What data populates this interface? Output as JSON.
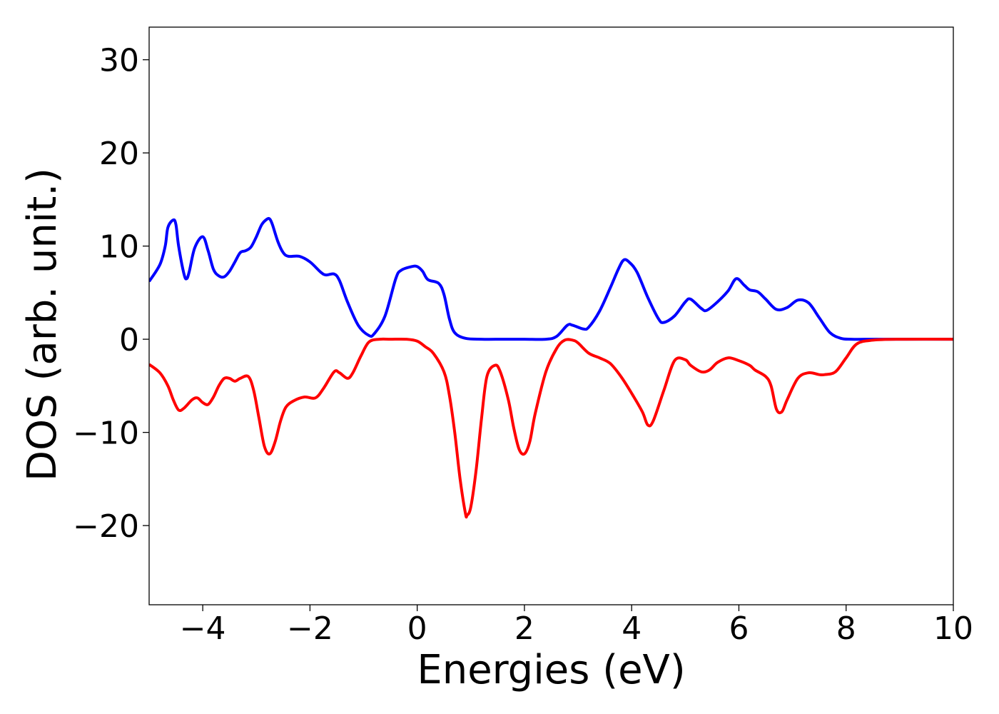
{
  "chart_data": {
    "type": "line",
    "xlabel": "Energies (eV)",
    "ylabel": "DOS (arb. unit.)",
    "xlim": [
      -5,
      10
    ],
    "ylim": [
      -28.5,
      33.5
    ],
    "xticks": [
      -4,
      -2,
      0,
      2,
      4,
      6,
      8,
      10
    ],
    "xtick_labels": [
      "−4",
      "−2",
      "0",
      "2",
      "4",
      "6",
      "8",
      "10"
    ],
    "yticks": [
      -20,
      -10,
      0,
      10,
      20,
      30
    ],
    "ytick_labels": [
      "−20",
      "−10",
      "0",
      "10",
      "20",
      "30"
    ],
    "grid": false,
    "series": [
      {
        "color": "#0000ff",
        "x": [
          -5.0,
          -4.8,
          -4.7,
          -4.65,
          -4.55,
          -4.5,
          -4.45,
          -4.35,
          -4.3,
          -4.25,
          -4.15,
          -4.0,
          -3.9,
          -3.8,
          -3.7,
          -3.6,
          -3.5,
          -3.4,
          -3.3,
          -3.2,
          -3.1,
          -3.0,
          -2.9,
          -2.8,
          -2.75,
          -2.7,
          -2.6,
          -2.5,
          -2.4,
          -2.2,
          -2.0,
          -1.8,
          -1.7,
          -1.55,
          -1.45,
          -1.3,
          -1.1,
          -0.9,
          -0.8,
          -0.6,
          -0.4,
          -0.3,
          -0.1,
          0.0,
          0.1,
          0.2,
          0.4,
          0.5,
          0.6,
          0.7,
          0.9,
          1.2,
          1.6,
          2.0,
          2.4,
          2.6,
          2.8,
          2.9,
          3.1,
          3.2,
          3.4,
          3.6,
          3.75,
          3.85,
          3.95,
          4.1,
          4.3,
          4.5,
          4.6,
          4.8,
          5.0,
          5.1,
          5.3,
          5.4,
          5.6,
          5.8,
          5.95,
          6.1,
          6.2,
          6.35,
          6.5,
          6.7,
          6.9,
          7.1,
          7.3,
          7.5,
          7.7,
          7.9,
          8.1,
          8.5,
          9.0,
          10.0
        ],
        "y": [
          6.2,
          8.0,
          10.0,
          12.0,
          12.8,
          12.3,
          10.0,
          7.0,
          6.5,
          7.3,
          9.8,
          11.0,
          9.5,
          7.5,
          6.8,
          6.7,
          7.3,
          8.3,
          9.3,
          9.5,
          9.9,
          11.0,
          12.3,
          12.9,
          12.9,
          12.3,
          10.5,
          9.3,
          8.9,
          8.9,
          8.3,
          7.2,
          6.9,
          7.0,
          6.3,
          4.0,
          1.5,
          0.4,
          0.6,
          2.5,
          6.5,
          7.4,
          7.8,
          7.8,
          7.3,
          6.4,
          6.0,
          4.8,
          2.2,
          0.7,
          0.1,
          0.0,
          0.0,
          0.0,
          0.0,
          0.3,
          1.5,
          1.5,
          1.1,
          1.3,
          3.0,
          5.5,
          7.5,
          8.5,
          8.3,
          7.2,
          4.5,
          2.2,
          1.8,
          2.5,
          4.0,
          4.3,
          3.3,
          3.1,
          4.0,
          5.2,
          6.5,
          5.8,
          5.3,
          5.1,
          4.3,
          3.2,
          3.4,
          4.2,
          3.9,
          2.3,
          0.7,
          0.1,
          0.0,
          0.0,
          0.0,
          0.0
        ]
      },
      {
        "color": "#ff0000",
        "x": [
          -5.0,
          -4.8,
          -4.65,
          -4.55,
          -4.45,
          -4.35,
          -4.2,
          -4.1,
          -4.0,
          -3.9,
          -3.8,
          -3.7,
          -3.6,
          -3.5,
          -3.4,
          -3.3,
          -3.15,
          -3.05,
          -2.95,
          -2.85,
          -2.75,
          -2.65,
          -2.55,
          -2.45,
          -2.3,
          -2.1,
          -1.9,
          -1.75,
          -1.55,
          -1.45,
          -1.3,
          -1.2,
          -1.05,
          -0.9,
          -0.7,
          -0.5,
          -0.2,
          0.0,
          0.15,
          0.3,
          0.5,
          0.6,
          0.7,
          0.8,
          0.9,
          0.93,
          1.0,
          1.1,
          1.2,
          1.3,
          1.45,
          1.55,
          1.7,
          1.8,
          1.9,
          2.0,
          2.1,
          2.2,
          2.4,
          2.6,
          2.75,
          2.9,
          3.0,
          3.2,
          3.4,
          3.6,
          3.8,
          4.0,
          4.2,
          4.3,
          4.4,
          4.6,
          4.8,
          5.0,
          5.1,
          5.3,
          5.45,
          5.6,
          5.8,
          6.0,
          6.2,
          6.3,
          6.5,
          6.6,
          6.7,
          6.8,
          6.9,
          7.1,
          7.3,
          7.5,
          7.6,
          7.8,
          8.0,
          8.2,
          8.5,
          9.0,
          10.0
        ],
        "y": [
          -2.7,
          -3.6,
          -5.0,
          -6.5,
          -7.6,
          -7.4,
          -6.5,
          -6.3,
          -6.8,
          -7.0,
          -6.2,
          -5.0,
          -4.2,
          -4.2,
          -4.5,
          -4.2,
          -4.0,
          -5.5,
          -8.5,
          -11.5,
          -12.3,
          -11.0,
          -8.8,
          -7.3,
          -6.6,
          -6.2,
          -6.3,
          -5.3,
          -3.5,
          -3.6,
          -4.2,
          -3.6,
          -1.8,
          -0.3,
          0.0,
          0.0,
          0.0,
          -0.2,
          -0.8,
          -1.5,
          -3.5,
          -6.0,
          -10.0,
          -15.0,
          -18.7,
          -18.9,
          -18.0,
          -14.0,
          -8.5,
          -4.0,
          -2.8,
          -3.5,
          -6.5,
          -9.5,
          -11.8,
          -12.3,
          -11.0,
          -8.0,
          -3.5,
          -1.0,
          -0.1,
          -0.1,
          -0.4,
          -1.5,
          -2.0,
          -2.6,
          -4.0,
          -5.8,
          -7.8,
          -9.2,
          -8.8,
          -5.5,
          -2.3,
          -2.2,
          -2.8,
          -3.5,
          -3.3,
          -2.5,
          -2.0,
          -2.3,
          -2.8,
          -3.3,
          -4.0,
          -5.0,
          -7.5,
          -7.8,
          -6.5,
          -4.2,
          -3.6,
          -3.8,
          -3.8,
          -3.5,
          -2.0,
          -0.5,
          -0.1,
          0.0,
          0.0
        ]
      }
    ]
  }
}
